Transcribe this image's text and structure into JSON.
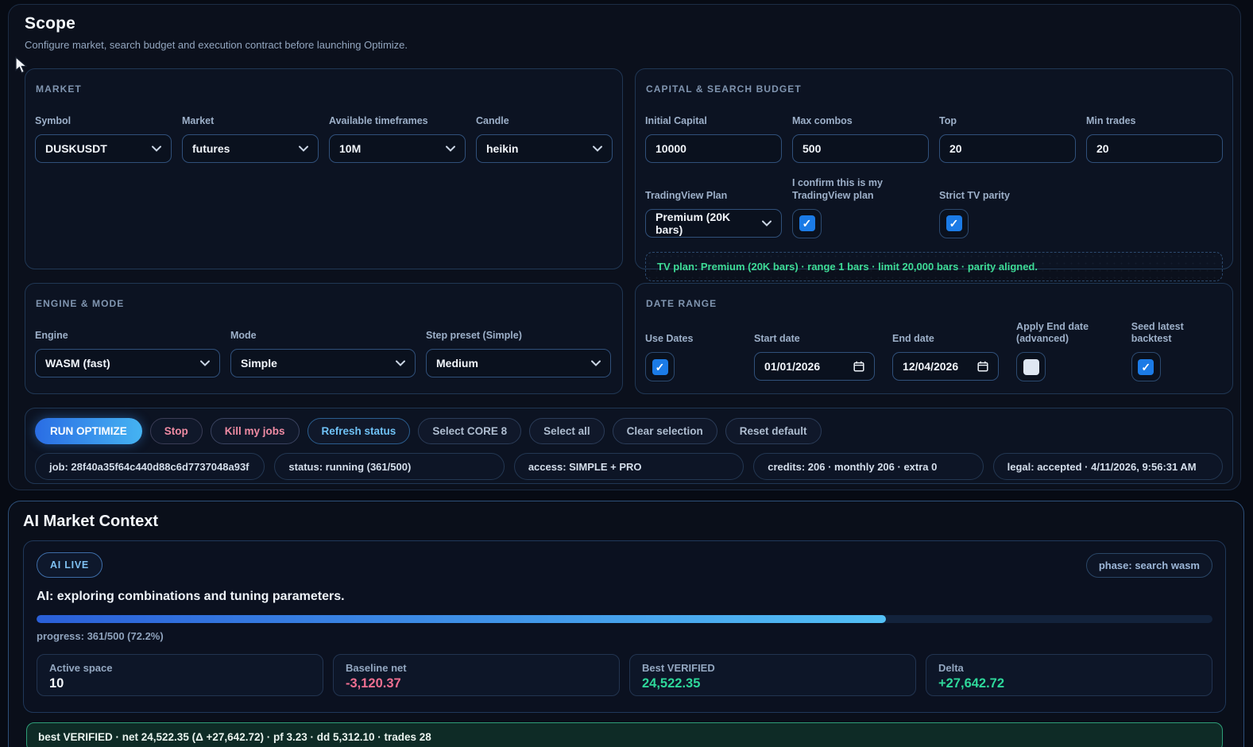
{
  "scope": {
    "title": "Scope",
    "subtitle": "Configure market, search budget and execution contract before launching Optimize.",
    "market": {
      "heading": "MARKET",
      "fields": [
        {
          "label": "Symbol",
          "value": "DUSKUSDT"
        },
        {
          "label": "Market",
          "value": "futures"
        },
        {
          "label": "Available timeframes",
          "value": "10M"
        },
        {
          "label": "Candle",
          "value": "heikin"
        }
      ]
    },
    "capital": {
      "heading": "CAPITAL & SEARCH BUDGET",
      "fields": [
        {
          "label": "Initial Capital",
          "value": "10000"
        },
        {
          "label": "Max combos",
          "value": "500"
        },
        {
          "label": "Top",
          "value": "20"
        },
        {
          "label": "Min trades",
          "value": "20"
        }
      ],
      "tv_plan_label": "TradingView Plan",
      "tv_plan_value": "Premium (20K bars)",
      "confirm_label": "I confirm this is my TradingView plan",
      "confirm_checked": true,
      "parity_label": "Strict TV parity",
      "parity_checked": true,
      "note": "TV plan: Premium (20K bars) · range 1 bars · limit 20,000 bars · parity aligned."
    },
    "engine": {
      "heading": "ENGINE & MODE",
      "fields": [
        {
          "label": "Engine",
          "value": "WASM (fast)"
        },
        {
          "label": "Mode",
          "value": "Simple"
        },
        {
          "label": "Step preset (Simple)",
          "value": "Medium"
        }
      ]
    },
    "date_range": {
      "heading": "DATE RANGE",
      "use_dates_label": "Use Dates",
      "use_dates_checked": true,
      "start_label": "Start date",
      "start_value": "01/01/2026",
      "end_label": "End date",
      "end_value": "12/04/2026",
      "apply_end_label": "Apply End date (advanced)",
      "apply_end_checked": false,
      "seed_label": "Seed latest backtest",
      "seed_checked": true
    },
    "actions": {
      "run": "RUN OPTIMIZE",
      "stop": "Stop",
      "kill": "Kill my jobs",
      "refresh": "Refresh status",
      "select_core": "Select CORE 8",
      "select_all": "Select all",
      "clear": "Clear selection",
      "reset": "Reset default"
    },
    "status_chips": [
      "job: 28f40a35f64c440d88c6d7737048a93f",
      "status: running (361/500)",
      "access: SIMPLE + PRO",
      "credits: 206 · monthly 206 · extra 0",
      "legal: accepted · 4/11/2026, 9:56:31 AM"
    ]
  },
  "ai": {
    "title": "AI Market Context",
    "live_badge": "AI LIVE",
    "phase_chip": "phase: search wasm",
    "message": "AI: exploring combinations and tuning parameters.",
    "progress_label": "progress: 361/500 (72.2%)",
    "progress_pct": 72.2,
    "stats": [
      {
        "label": "Active space",
        "value": "10",
        "tone": "white"
      },
      {
        "label": "Baseline net",
        "value": "-3,120.37",
        "tone": "negative"
      },
      {
        "label": "Best VERIFIED",
        "value": "24,522.35",
        "tone": "positive"
      },
      {
        "label": "Delta",
        "value": "+27,642.72",
        "tone": "positive"
      }
    ],
    "summary": "best VERIFIED · net 24,522.35 (Δ +27,642.72) · pf 3.23 · dd 5,312.10 · trades 28"
  },
  "colors": {
    "accent_blue": "#2a6de4",
    "accent_cyan": "#45b3f2",
    "checkbox_blue": "#1b7be6",
    "positive_green": "#2ed79a",
    "negative_pink": "#ef6f90",
    "note_green": "#3edc97",
    "summary_border_green": "#2e9e78"
  }
}
